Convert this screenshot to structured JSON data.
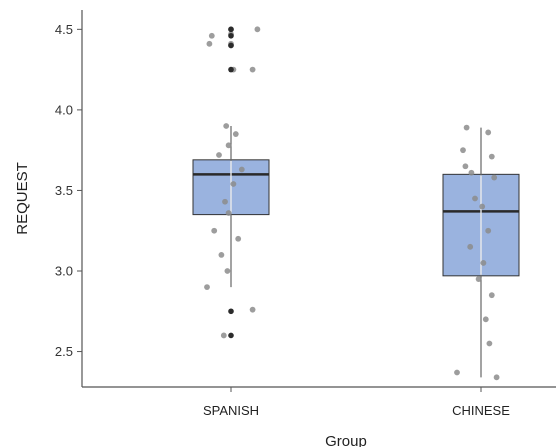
{
  "chart_data": {
    "type": "boxplot",
    "xlabel": "Group",
    "ylabel": "REQUEST",
    "ylim": [
      2.28,
      4.62
    ],
    "yticks": [
      2.5,
      3.0,
      3.5,
      4.0,
      4.5
    ],
    "ytick_labels": [
      "2.5",
      "3.0",
      "3.5",
      "4.0",
      "4.5"
    ],
    "grid": false,
    "legend": "none",
    "categories": [
      "SPANISH",
      "CHINESE"
    ],
    "colors": {
      "box_fill": "#9ab3df",
      "box_edge": "#333333",
      "median": "#2a2a2a",
      "whisker": "#666666",
      "point": "#8c8c8c",
      "point_dark": "#2b2b2b",
      "axis": "#555555"
    },
    "boxes": [
      {
        "category": "SPANISH",
        "whisker_low": 2.9,
        "q1": 3.35,
        "median": 3.6,
        "q3": 3.69,
        "whisker_high": 3.9,
        "points": [
          {
            "y": 4.5,
            "dx": 0.22
          },
          {
            "y": 4.46,
            "dx": -0.16
          },
          {
            "y": 4.5,
            "dx": 0.0
          },
          {
            "y": 4.47,
            "dx": 0.0
          },
          {
            "y": 4.41,
            "dx": -0.18
          },
          {
            "y": 4.41,
            "dx": 0.0
          },
          {
            "y": 4.4,
            "dx": 0.0
          },
          {
            "y": 4.25,
            "dx": 0.02
          },
          {
            "y": 4.25,
            "dx": 0.18
          },
          {
            "y": 3.9,
            "dx": -0.04
          },
          {
            "y": 3.85,
            "dx": 0.04
          },
          {
            "y": 3.78,
            "dx": -0.02
          },
          {
            "y": 3.72,
            "dx": -0.1
          },
          {
            "y": 3.63,
            "dx": 0.09
          },
          {
            "y": 3.54,
            "dx": 0.02
          },
          {
            "y": 3.43,
            "dx": -0.05
          },
          {
            "y": 3.36,
            "dx": -0.02
          },
          {
            "y": 3.25,
            "dx": -0.14
          },
          {
            "y": 3.2,
            "dx": 0.06
          },
          {
            "y": 3.1,
            "dx": -0.08
          },
          {
            "y": 3.0,
            "dx": -0.03
          },
          {
            "y": 2.9,
            "dx": -0.2
          },
          {
            "y": 2.76,
            "dx": 0.18
          },
          {
            "y": 2.6,
            "dx": -0.06
          },
          {
            "y": 2.75,
            "dx": 0.0,
            "dark": true
          },
          {
            "y": 2.6,
            "dx": 0.0,
            "dark": true
          },
          {
            "y": 4.5,
            "dx": 0.0,
            "dark": true
          },
          {
            "y": 4.46,
            "dx": 0.0,
            "dark": true
          },
          {
            "y": 4.4,
            "dx": 0.0,
            "dark": true
          },
          {
            "y": 4.25,
            "dx": 0.0,
            "dark": true
          }
        ]
      },
      {
        "category": "CHINESE",
        "whisker_low": 2.34,
        "q1": 2.97,
        "median": 3.37,
        "q3": 3.6,
        "whisker_high": 3.89,
        "points": [
          {
            "y": 3.89,
            "dx": -0.12
          },
          {
            "y": 3.86,
            "dx": 0.06
          },
          {
            "y": 3.75,
            "dx": -0.15
          },
          {
            "y": 3.71,
            "dx": 0.09
          },
          {
            "y": 3.65,
            "dx": -0.13
          },
          {
            "y": 3.61,
            "dx": -0.08
          },
          {
            "y": 3.58,
            "dx": 0.11
          },
          {
            "y": 3.45,
            "dx": -0.05
          },
          {
            "y": 3.4,
            "dx": 0.01
          },
          {
            "y": 3.25,
            "dx": 0.06
          },
          {
            "y": 3.15,
            "dx": -0.09
          },
          {
            "y": 3.05,
            "dx": 0.02
          },
          {
            "y": 2.95,
            "dx": -0.02
          },
          {
            "y": 2.85,
            "dx": 0.09
          },
          {
            "y": 2.7,
            "dx": 0.04
          },
          {
            "y": 2.55,
            "dx": 0.07
          },
          {
            "y": 2.37,
            "dx": -0.2
          },
          {
            "y": 2.34,
            "dx": 0.13
          }
        ]
      }
    ]
  }
}
